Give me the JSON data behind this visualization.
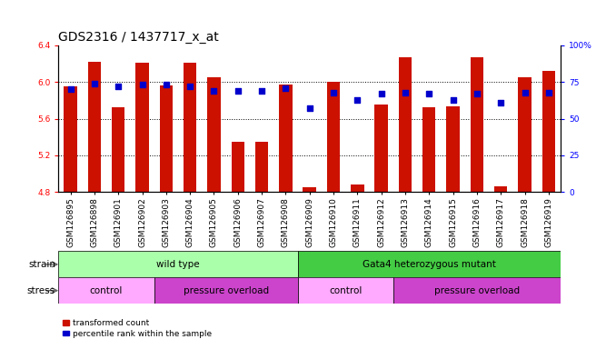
{
  "title": "GDS2316 / 1437717_x_at",
  "samples": [
    "GSM126895",
    "GSM126898",
    "GSM126901",
    "GSM126902",
    "GSM126903",
    "GSM126904",
    "GSM126905",
    "GSM126906",
    "GSM126907",
    "GSM126908",
    "GSM126909",
    "GSM126910",
    "GSM126911",
    "GSM126912",
    "GSM126913",
    "GSM126914",
    "GSM126915",
    "GSM126916",
    "GSM126917",
    "GSM126918",
    "GSM126919"
  ],
  "bar_values": [
    5.95,
    6.22,
    5.72,
    6.21,
    5.96,
    6.21,
    6.05,
    5.35,
    5.35,
    5.97,
    4.85,
    6.0,
    4.88,
    5.75,
    6.27,
    5.72,
    5.73,
    6.27,
    4.86,
    6.05,
    6.12
  ],
  "dot_percentiles": [
    70,
    74,
    72,
    73,
    73,
    72,
    69,
    69,
    69,
    71,
    57,
    68,
    63,
    67,
    68,
    67,
    63,
    67,
    61,
    68,
    68
  ],
  "bar_color": "#cc1100",
  "dot_color": "#0000cc",
  "ylim_left": [
    4.8,
    6.4
  ],
  "ylim_right": [
    0,
    100
  ],
  "yticks_left": [
    4.8,
    5.2,
    5.6,
    6.0,
    6.4
  ],
  "yticks_right": [
    0,
    25,
    50,
    75,
    100
  ],
  "ytick_labels_right": [
    "0",
    "25",
    "50",
    "75",
    "100%"
  ],
  "grid_values": [
    5.2,
    5.6,
    6.0
  ],
  "base_value": 4.8,
  "strain_groups": [
    {
      "label": "wild type",
      "start": 0,
      "end": 10,
      "color": "#aaffaa"
    },
    {
      "label": "Gata4 heterozygous mutant",
      "start": 10,
      "end": 21,
      "color": "#44cc44"
    }
  ],
  "stress_groups": [
    {
      "label": "control",
      "start": 0,
      "end": 4,
      "color": "#ffaaff"
    },
    {
      "label": "pressure overload",
      "start": 4,
      "end": 10,
      "color": "#cc44cc"
    },
    {
      "label": "control",
      "start": 10,
      "end": 14,
      "color": "#ffaaff"
    },
    {
      "label": "pressure overload",
      "start": 14,
      "end": 21,
      "color": "#cc44cc"
    }
  ],
  "legend_items": [
    {
      "label": "transformed count",
      "color": "#cc1100",
      "marker": "s"
    },
    {
      "label": "percentile rank within the sample",
      "color": "#0000cc",
      "marker": "s"
    }
  ],
  "bar_width": 0.55,
  "background_color": "#ffffff",
  "title_fontsize": 10,
  "tick_fontsize": 6.5,
  "label_fontsize": 7.5,
  "row_label_fontsize": 7.5
}
